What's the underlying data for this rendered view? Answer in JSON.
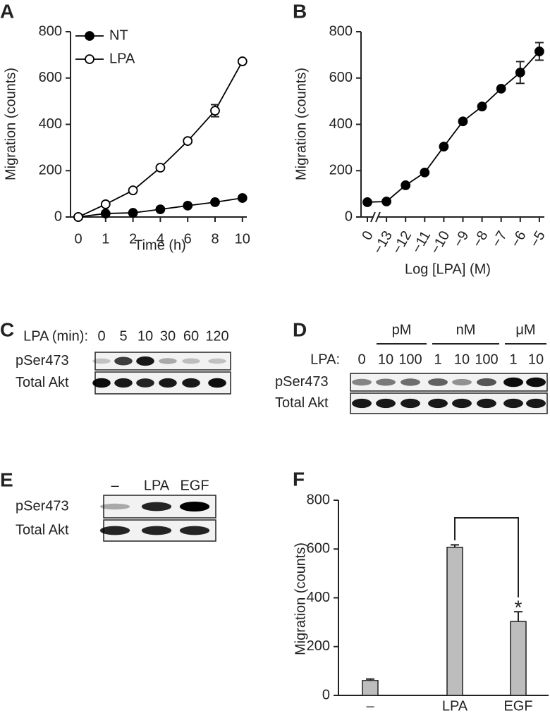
{
  "chart_data": [
    {
      "panel": "A",
      "type": "line",
      "ylabel": "Migration (counts)",
      "xlabel": "Time (h)",
      "categories": [
        "0",
        "1",
        "2",
        "4",
        "6",
        "8",
        "10"
      ],
      "ylim": [
        0,
        800
      ],
      "yticks": [
        0,
        200,
        400,
        600,
        800
      ],
      "legend": "upper left",
      "series": [
        {
          "name": "NT",
          "color": "#000000",
          "marker": "filled",
          "values": [
            0,
            15,
            18,
            33,
            49,
            64,
            82
          ]
        },
        {
          "name": "LPA",
          "color": "#000000",
          "marker": "open",
          "values": [
            0,
            55,
            115,
            213,
            328,
            459,
            672
          ],
          "errors": [
            null,
            null,
            null,
            null,
            null,
            26,
            null
          ]
        }
      ]
    },
    {
      "panel": "B",
      "type": "line",
      "ylabel": "Migration (counts)",
      "xlabel": "Log [LPA] (M)",
      "categories": [
        "0",
        "−13",
        "−12",
        "−11",
        "−10",
        "−9",
        "−8",
        "−7",
        "−6",
        "−5"
      ],
      "ylim": [
        0,
        800
      ],
      "yticks": [
        0,
        200,
        400,
        600,
        800
      ],
      "axis_break": true,
      "series": [
        {
          "color": "#000000",
          "marker": "filled",
          "values": [
            64,
            67,
            137,
            192,
            304,
            413,
            477,
            554,
            624,
            715
          ],
          "errors": [
            null,
            null,
            null,
            null,
            null,
            null,
            null,
            null,
            47,
            38
          ]
        }
      ]
    },
    {
      "panel": "F",
      "type": "bar",
      "ylabel": "Migration (counts)",
      "categories": [
        "–",
        "LPA",
        "EGF"
      ],
      "values": [
        61,
        607,
        303
      ],
      "errors": [
        6,
        10,
        40
      ],
      "color": "#bdbdbd",
      "ylim": [
        0,
        800
      ],
      "yticks": [
        0,
        200,
        400,
        600,
        800
      ],
      "annotation": "*"
    }
  ],
  "blots": [
    {
      "panel": "C",
      "lane_header": "LPA (min):",
      "lanes": [
        "0",
        "5",
        "10",
        "30",
        "60",
        "120"
      ],
      "rows": [
        "pSer473",
        "Total Akt"
      ]
    },
    {
      "panel": "D",
      "lane_header": "LPA:",
      "lanes": [
        "0",
        "10",
        "100",
        "1",
        "10",
        "100",
        "1",
        "10"
      ],
      "groups": [
        "pM",
        "nM",
        "μM"
      ],
      "rows": [
        "pSer473",
        "Total Akt"
      ]
    },
    {
      "panel": "E",
      "lanes": [
        "–",
        "LPA",
        "EGF"
      ],
      "rows": [
        "pSer473",
        "Total Akt"
      ]
    }
  ]
}
